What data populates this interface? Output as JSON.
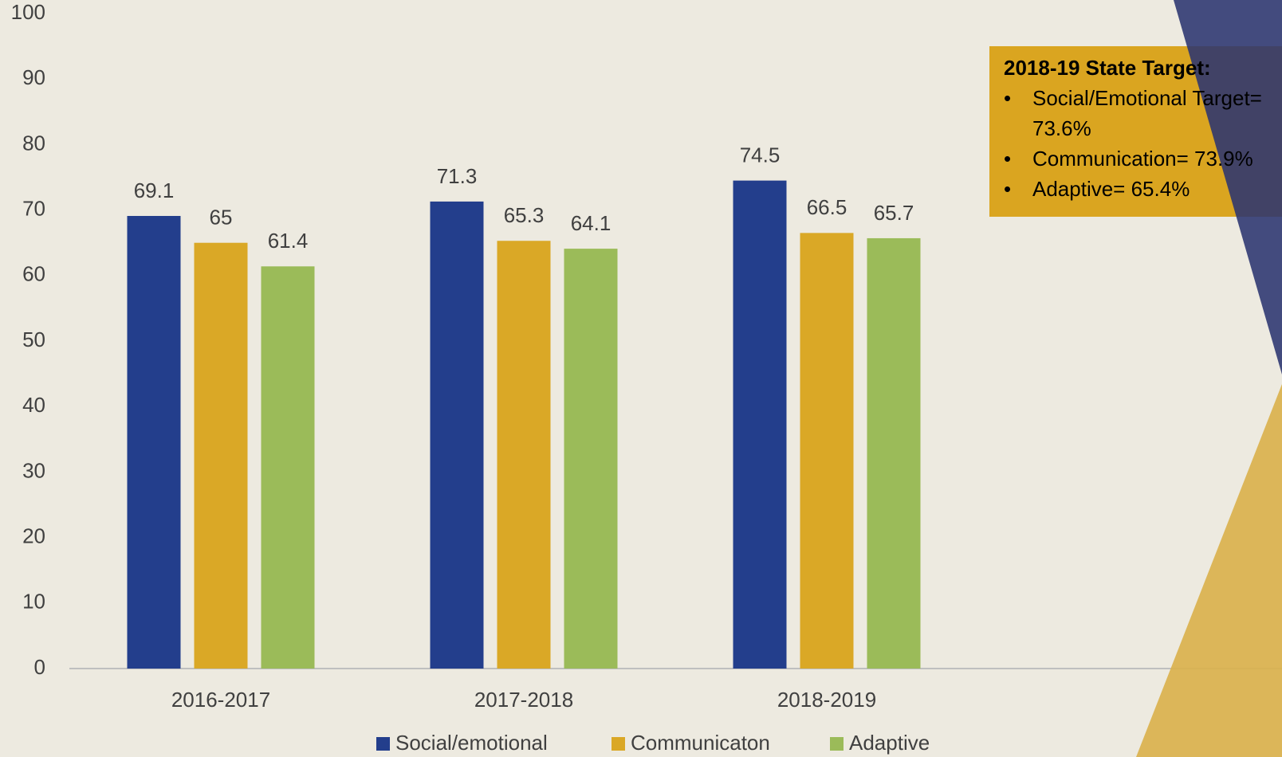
{
  "chart_data": {
    "type": "bar",
    "categories": [
      "2016-2017",
      "2017-2018",
      "2018-2019"
    ],
    "series": [
      {
        "name": "Social/emotional",
        "color": "#233e8c",
        "values": [
          69.1,
          71.3,
          74.5
        ]
      },
      {
        "name": "Communicaton",
        "color": "#daa826",
        "values": [
          65,
          65.3,
          66.5
        ]
      },
      {
        "name": "Adaptive",
        "color": "#9bbb59",
        "values": [
          61.4,
          64.1,
          65.7
        ]
      }
    ],
    "ylim": [
      0,
      100
    ],
    "yticks": [
      0,
      10,
      20,
      30,
      40,
      50,
      60,
      70,
      80,
      90,
      100
    ],
    "legend": "bottom",
    "annotation": {
      "title": "2018-19 State Target:",
      "items": [
        "Social/Emotional Target= 73.6%",
        "Communication= 73.9%",
        "Adaptive= 65.4%"
      ]
    }
  }
}
